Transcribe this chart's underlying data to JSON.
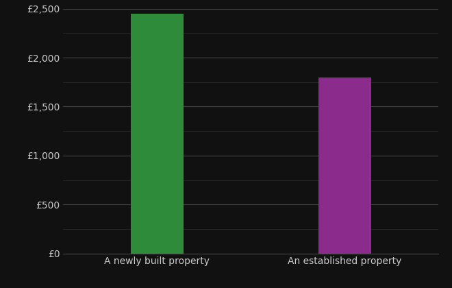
{
  "categories": [
    "A newly built property",
    "An established property"
  ],
  "values": [
    2450,
    1800
  ],
  "bar_colors": [
    "#2d8b3a",
    "#8b2b8b"
  ],
  "background_color": "#111111",
  "text_color": "#cccccc",
  "grid_color_major": "#444444",
  "grid_color_minor": "#2a2a2a",
  "ylim": [
    0,
    2500
  ],
  "yticks_major": [
    0,
    500,
    1000,
    1500,
    2000,
    2500
  ],
  "yticks_minor": [
    250,
    750,
    1250,
    1750,
    2250
  ],
  "ytick_labels": [
    "£0",
    "£500",
    "£1,000",
    "£1,500",
    "£2,000",
    "£2,500"
  ],
  "bar_width": 0.28,
  "tick_fontsize": 10,
  "label_fontsize": 10
}
